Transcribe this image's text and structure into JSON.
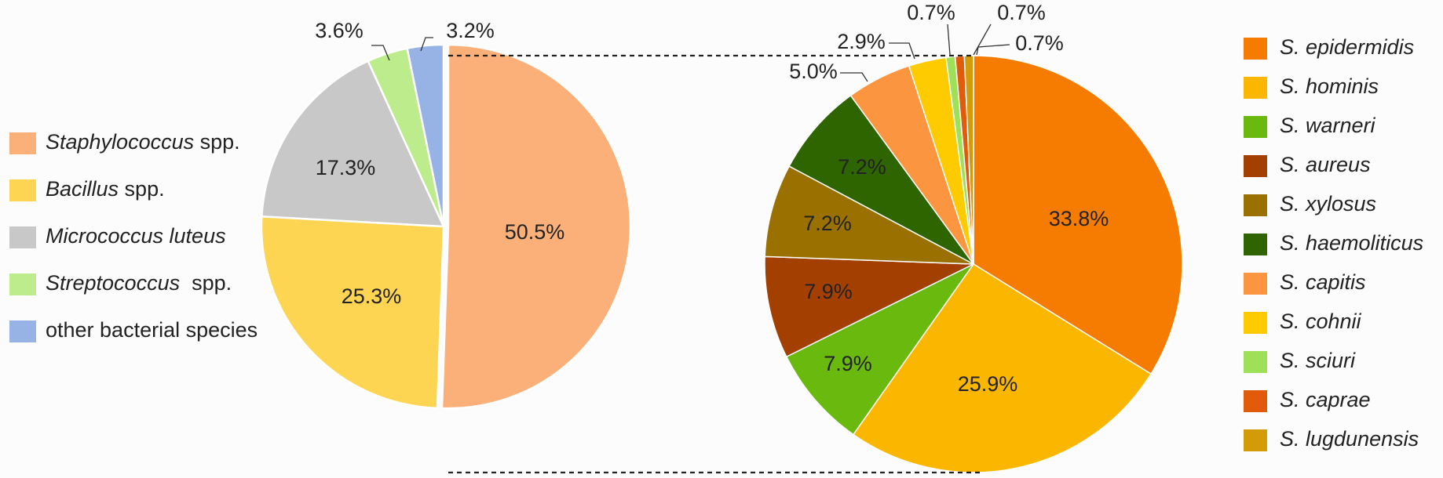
{
  "chart_data": [
    {
      "type": "pie",
      "slices": [
        {
          "label": "Staphylococcus spp.",
          "label_italic": "Staphylococcus",
          "label_rest": " spp.",
          "value": 50.5,
          "value_label": "50.5%",
          "color": "#fbb07a"
        },
        {
          "label": "Bacillus spp.",
          "label_italic": "Bacillus",
          "label_rest": " spp.",
          "value": 25.3,
          "value_label": "25.3%",
          "color": "#fdd553"
        },
        {
          "label": "Micrococcus luteus",
          "label_italic": "Micrococcus luteus",
          "label_rest": "",
          "value": 17.3,
          "value_label": "17.3%",
          "color": "#c8c8c8"
        },
        {
          "label": "Streptococcus spp.",
          "label_italic": "Streptococcus",
          "label_rest": "  spp.",
          "value": 3.6,
          "value_label": "3.6%",
          "color": "#bdec8c"
        },
        {
          "label": "other bacterial species",
          "label_italic": "",
          "label_rest": "other bacterial species",
          "value": 3.2,
          "value_label": "3.2%",
          "color": "#97b2e4"
        }
      ],
      "legend_position": "left"
    },
    {
      "type": "pie",
      "slices": [
        {
          "label": "S. epidermidis",
          "value": 33.8,
          "value_label": "33.8%",
          "color": "#f57c00"
        },
        {
          "label": "S. hominis",
          "value": 25.9,
          "value_label": "25.9%",
          "color": "#fbb700"
        },
        {
          "label": "S. warneri",
          "value": 7.9,
          "value_label": "7.9%",
          "color": "#6ab90f"
        },
        {
          "label": "S. aureus",
          "value": 7.9,
          "value_label": "7.9%",
          "color": "#a33f00"
        },
        {
          "label": "S. xylosus",
          "value": 7.2,
          "value_label": "7.2%",
          "color": "#9a7100"
        },
        {
          "label": "S. haemoliticus",
          "value": 7.2,
          "value_label": "7.2%",
          "color": "#2e6500"
        },
        {
          "label": "S. capitis",
          "value": 5.0,
          "value_label": "5.0%",
          "color": "#fc9540"
        },
        {
          "label": "S. cohnii",
          "value": 2.9,
          "value_label": "2.9%",
          "color": "#fdcb00"
        },
        {
          "label": "S. sciuri",
          "value": 0.7,
          "value_label": "0.7%",
          "color": "#9ee057"
        },
        {
          "label": "S. caprae",
          "value": 0.7,
          "value_label": "0.7%",
          "color": "#e25b0a"
        },
        {
          "label": "S. lugdunensis",
          "value": 0.7,
          "value_label": "0.7%",
          "color": "#d39b08"
        }
      ],
      "legend_position": "right"
    }
  ]
}
